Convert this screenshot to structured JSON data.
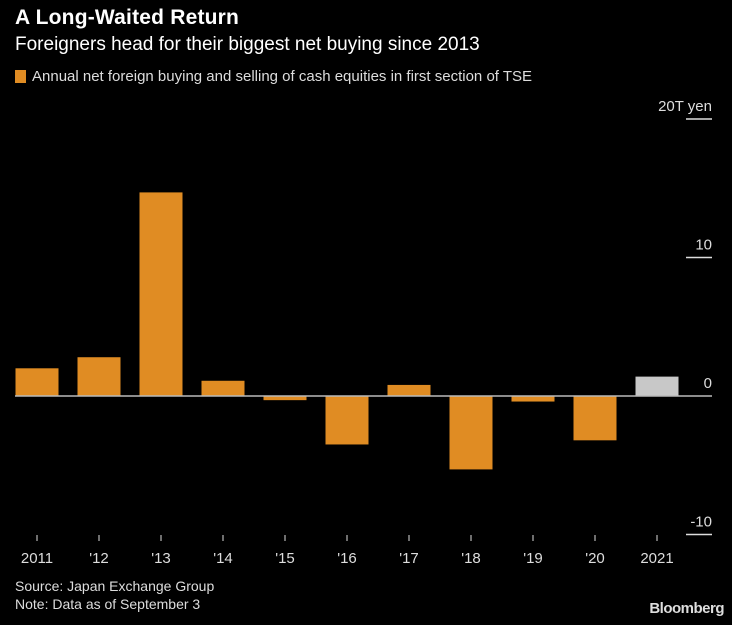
{
  "header": {
    "title": "A Long-Waited Return",
    "subtitle": "Foreigners head for their biggest net buying since 2013"
  },
  "legend": {
    "label": "Annual net foreign buying and selling of cash equities in first section of TSE",
    "color": "#e08c23"
  },
  "footer": {
    "source": "Source: Japan Exchange Group",
    "note": "Note: Data as of September 3",
    "brand": "Bloomberg"
  },
  "chart_data": {
    "type": "bar",
    "title": "A Long-Waited Return",
    "subtitle": "Foreigners head for their biggest net buying since 2013",
    "xlabel": "",
    "ylabel": "T yen",
    "categories": [
      "2011",
      "'12",
      "'13",
      "'14",
      "'15",
      "'16",
      "'17",
      "'18",
      "'19",
      "'20",
      "2021"
    ],
    "series": [
      {
        "name": "Annual net foreign buying and selling of cash equities in first section of TSE",
        "values": [
          2.0,
          2.8,
          14.7,
          1.1,
          -0.3,
          -3.5,
          0.8,
          -5.3,
          -0.4,
          -3.2,
          1.4
        ],
        "colors": [
          "#e08c23",
          "#e08c23",
          "#e08c23",
          "#e08c23",
          "#e08c23",
          "#e08c23",
          "#e08c23",
          "#e08c23",
          "#e08c23",
          "#e08c23",
          "#c8c8c8"
        ]
      }
    ],
    "ylim": [
      -10,
      20
    ],
    "yticks": [
      {
        "value": 20,
        "label": "20T yen"
      },
      {
        "value": 10,
        "label": "10"
      },
      {
        "value": 0,
        "label": "0"
      },
      {
        "value": -10,
        "label": "-10"
      }
    ],
    "y_axis_side": "right",
    "grid": false,
    "legend_position": "top-left"
  }
}
